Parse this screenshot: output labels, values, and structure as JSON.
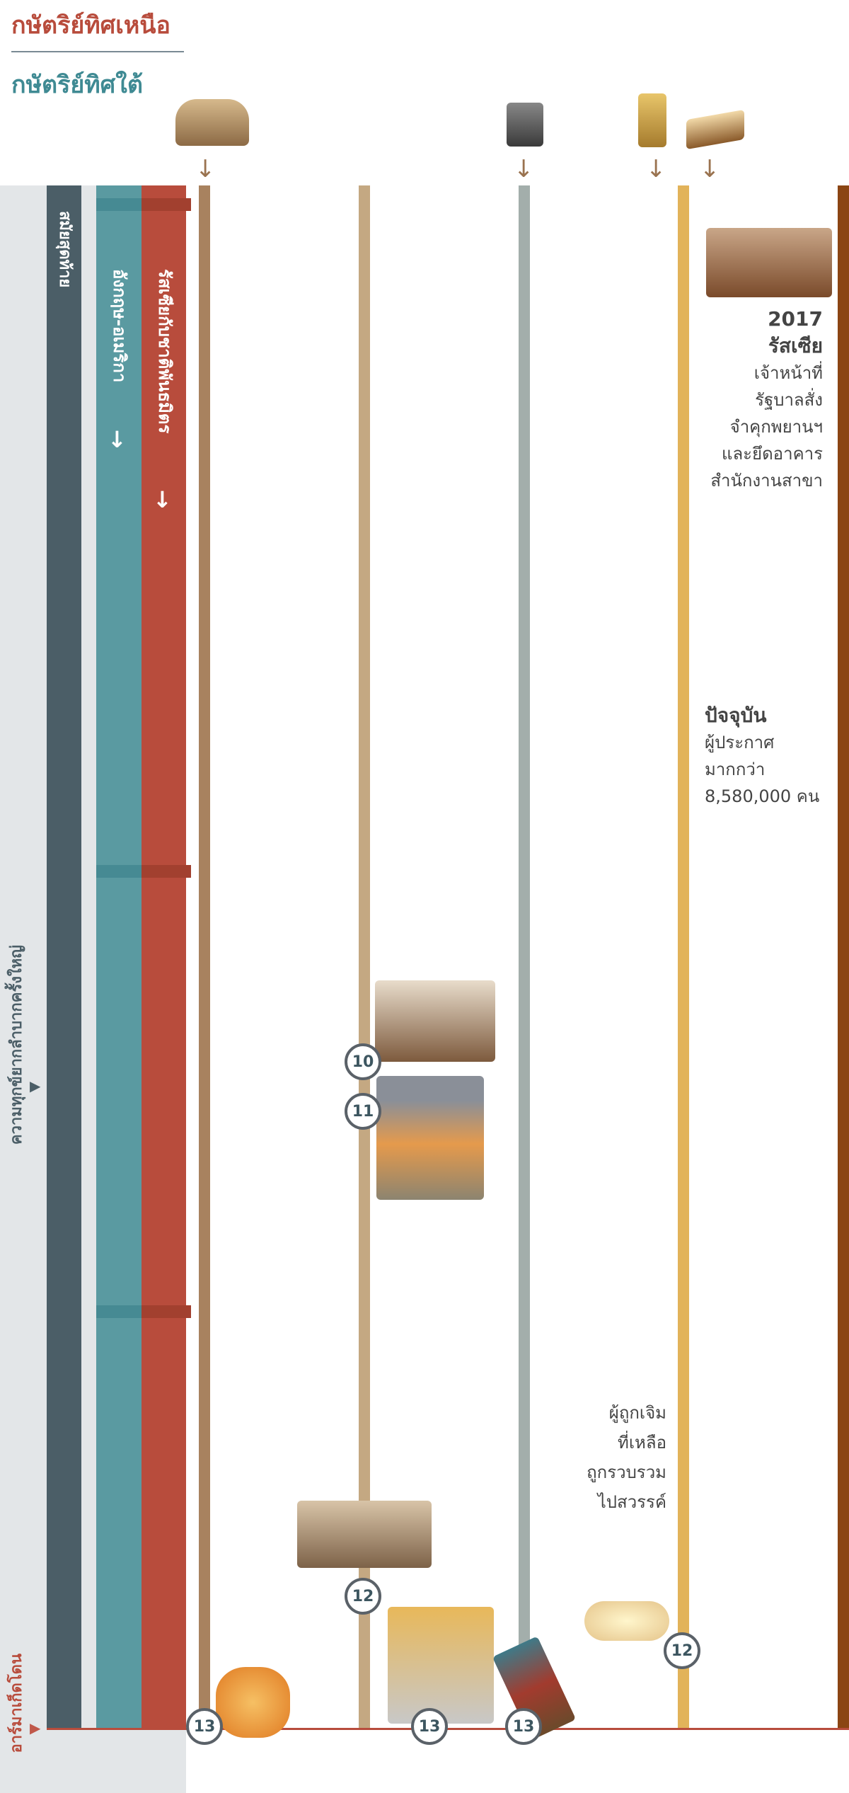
{
  "header": {
    "north_title": "กษัตริย์ทิศเหนือ",
    "south_title": "กษัตริย์ทิศใต้"
  },
  "bars": {
    "last_days": "สมัยสุดท้าย",
    "anglo_american": "อังกฤษ-อเมริกา",
    "russia_allies": "รัสเซียกับชาติพันธมิตร",
    "arrow": "↓"
  },
  "side_labels": {
    "great_tribulation": "ความทุกข์ยากลำบากครั้งใหญ่",
    "armageddon": "อาร์มาเก็ดโดน",
    "marker": "▶"
  },
  "colors": {
    "slate": "#4b5e67",
    "teal": "#5a9aa1",
    "red": "#b84c3c",
    "line1": "#a8825f",
    "line2": "#c4a882",
    "line3": "#a3aeab",
    "line4": "#e2b35a",
    "line5": "#8b4513"
  },
  "top_icons": [
    "leopard-beast-icon",
    "iron-clay-feet-icon",
    "wheat-sheaf-icon",
    "open-bible-icon"
  ],
  "events": {
    "russia_2017": {
      "year": "2017",
      "title": "รัสเซีย",
      "lines": [
        "เจ้าหน้าที่",
        "รัฐบาลสั่ง",
        "จำคุกพยานฯ",
        "และยึดอาคาร",
        "สำนักงานสาขา"
      ]
    },
    "present": {
      "title": "ปัจจุบัน",
      "lines": [
        "ผู้ประกาศ",
        "มากกว่า",
        "8,580,000 คน"
      ]
    },
    "anointed": {
      "lines": [
        "ผู้ถูกเจิม",
        "ที่เหลือ",
        "ถูกรวบรวม",
        "ไปสวรรค์"
      ]
    }
  },
  "markers": {
    "m10": "10",
    "m11": "11",
    "m12a": "12",
    "m12b": "12",
    "m13a": "13",
    "m13b": "13",
    "m13c": "13"
  }
}
